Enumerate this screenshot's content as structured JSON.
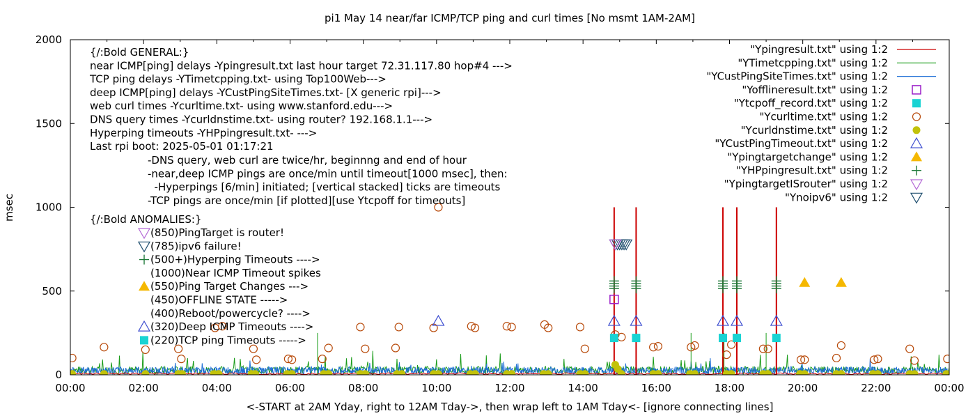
{
  "chart_data": {
    "type": "scatter",
    "title": "pi1 May 14  near/far ICMP/TCP ping and curl times [No msmt 1AM-2AM]",
    "xlabel": "<-START at 2AM Yday, right to 12AM Tday->, then wrap left to 1AM Tday<- [ignore connecting lines]",
    "ylabel": "msec",
    "xlim": [
      0,
      24
    ],
    "ylim": [
      0,
      2000
    ],
    "x_ticks": [
      "00:00",
      "02:00",
      "04:00",
      "06:00",
      "08:00",
      "10:00",
      "12:00",
      "14:00",
      "16:00",
      "18:00",
      "20:00",
      "22:00",
      "00:00"
    ],
    "y_ticks": [
      "0",
      "500",
      "1000",
      "1500",
      "2000"
    ],
    "legend_position": "top-right",
    "legend": [
      {
        "label": "\"Ypingresult.txt\" using 1:2",
        "color": "#cc0000",
        "marker": "line"
      },
      {
        "label": "\"YTimetcpping.txt\" using 1:2",
        "color": "#1a9c1a",
        "marker": "line"
      },
      {
        "label": "\"YCustPingSiteTimes.txt\" using 1:2",
        "color": "#1f6fd6",
        "marker": "line"
      },
      {
        "label": "\"Yofflineresult.txt\" using 1:2",
        "color": "#9b1fc9",
        "marker": "open-square"
      },
      {
        "label": "\"Ytcpoff_record.txt\" using 1:2",
        "color": "#19d3d3",
        "marker": "filled-square"
      },
      {
        "label": "\"Ycurltime.txt\" using 1:2",
        "color": "#b84a0a",
        "marker": "open-circle"
      },
      {
        "label": "\"Ycurldnstime.txt\" using 1:2",
        "color": "#c2c20a",
        "marker": "filled-circle"
      },
      {
        "label": "\"YCustPingTimeout.txt\" using 1:2",
        "color": "#3f4fd0",
        "marker": "open-triangle"
      },
      {
        "label": "\"Ypingtargetchange\" using 1:2",
        "color": "#f5b800",
        "marker": "filled-triangle"
      },
      {
        "label": "\"YHPpingresult.txt\" using 1:2",
        "color": "#1f7a3a",
        "marker": "plus"
      },
      {
        "label": "\"YpingtargetISrouter\" using 1:2",
        "color": "#b46ad6",
        "marker": "open-down-triangle"
      },
      {
        "label": "\"Ynoipv6\" using 1:2",
        "color": "#1f4f6f",
        "marker": "open-down-triangle"
      }
    ],
    "notes_general": [
      "{/:Bold GENERAL:}",
      "near ICMP[ping] delays -Ypingresult.txt last hour target 72.31.117.80 hop#4 --->",
      "TCP ping delays -YTimetcpping.txt- using Top100Web--->",
      "deep ICMP[ping] delays -YCustPingSiteTimes.txt- [X generic rpi]--->",
      "web curl times -Ycurltime.txt- using www.stanford.edu--->",
      "DNS query times -Ycurldnstime.txt- using router? 192.168.1.1--->",
      "Hyperping timeouts -YHPpingresult.txt- --->",
      "Last rpi boot: 2025-05-01 01:17:21"
    ],
    "notes_indented": [
      "-DNS query, web curl are twice/hr, beginnng and end of hour",
      "-near,deep ICMP pings are once/min until timeout[1000 msec], then:",
      "  -Hyperpings [6/min] initiated; [vertical stacked] ticks are timeouts",
      "-TCP pings are once/min [if plotted][use Ytcpoff for timeouts]"
    ],
    "anomalies_title": "{/:Bold ANOMALIES:}",
    "anomalies": [
      {
        "marker": "open-down-triangle",
        "color": "#b46ad6",
        "text": "(850)PingTarget is router!"
      },
      {
        "marker": "open-down-triangle",
        "color": "#1f4f6f",
        "text": "(785)ipv6 failure!"
      },
      {
        "marker": "plus",
        "color": "#1f7a3a",
        "text": "(500+)Hyperping Timeouts ---->"
      },
      {
        "marker": "none",
        "color": "#000000",
        "text": "(1000)Near ICMP Timeout spikes"
      },
      {
        "marker": "filled-triangle",
        "color": "#f5b800",
        "text": "(550)Ping Target Changes --->"
      },
      {
        "marker": "none",
        "color": "#000000",
        "text": "(450)OFFLINE STATE ----->"
      },
      {
        "marker": "none",
        "color": "#000000",
        "text": "(400)Reboot/powercycle? ---->"
      },
      {
        "marker": "open-triangle",
        "color": "#3f4fd0",
        "text": "(320)Deep ICMP Timeouts ---->"
      },
      {
        "marker": "filled-square",
        "color": "#19d3d3",
        "text": "(220)TCP ping Timeouts ----->"
      }
    ],
    "series": {
      "icmp_timeout_spikes_x": [
        14.85,
        15.45,
        17.82,
        18.2,
        19.28
      ],
      "icmp_timeout_spike_value": 1000,
      "hyperping_timeouts_x": [
        14.85,
        15.45,
        17.82,
        18.2,
        19.28
      ],
      "hyperping_timeout_values": [
        515,
        530,
        545,
        560
      ],
      "deep_icmp_timeouts": [
        [
          10.05,
          320
        ],
        [
          14.85,
          320
        ],
        [
          15.45,
          320
        ],
        [
          17.82,
          320
        ],
        [
          18.2,
          320
        ],
        [
          19.28,
          320
        ]
      ],
      "tcp_ping_timeouts": [
        [
          14.85,
          220
        ],
        [
          15.45,
          220
        ],
        [
          17.82,
          220
        ],
        [
          18.2,
          220
        ],
        [
          19.28,
          220
        ]
      ],
      "offline_state": [
        [
          14.85,
          450
        ]
      ],
      "ipv6_failures": [
        [
          14.88,
          780
        ],
        [
          14.94,
          780
        ],
        [
          15.0,
          780
        ],
        [
          15.06,
          780
        ],
        [
          15.12,
          780
        ],
        [
          15.18,
          780
        ]
      ],
      "ping_target_changes": [
        [
          20.05,
          550
        ],
        [
          21.05,
          550
        ]
      ],
      "curl_times": [
        [
          0.05,
          100
        ],
        [
          0.92,
          165
        ],
        [
          2.05,
          150
        ],
        [
          2.95,
          155
        ],
        [
          3.03,
          95
        ],
        [
          3.95,
          280
        ],
        [
          4.15,
          290
        ],
        [
          5.0,
          155
        ],
        [
          5.08,
          90
        ],
        [
          5.95,
          95
        ],
        [
          6.05,
          90
        ],
        [
          6.88,
          95
        ],
        [
          7.05,
          160
        ],
        [
          7.92,
          285
        ],
        [
          8.05,
          155
        ],
        [
          8.88,
          160
        ],
        [
          8.97,
          285
        ],
        [
          9.92,
          280
        ],
        [
          10.05,
          1000
        ],
        [
          10.95,
          290
        ],
        [
          11.05,
          280
        ],
        [
          11.92,
          290
        ],
        [
          12.05,
          285
        ],
        [
          12.95,
          300
        ],
        [
          13.05,
          280
        ],
        [
          13.92,
          285
        ],
        [
          14.05,
          155
        ],
        [
          14.88,
          240
        ],
        [
          15.05,
          225
        ],
        [
          15.92,
          165
        ],
        [
          16.05,
          170
        ],
        [
          16.95,
          165
        ],
        [
          17.05,
          175
        ],
        [
          17.92,
          120
        ],
        [
          18.05,
          180
        ],
        [
          18.92,
          155
        ],
        [
          19.05,
          155
        ],
        [
          19.95,
          90
        ],
        [
          20.05,
          90
        ],
        [
          20.92,
          100
        ],
        [
          21.05,
          175
        ],
        [
          21.95,
          90
        ],
        [
          22.05,
          95
        ],
        [
          22.92,
          155
        ],
        [
          23.05,
          85
        ],
        [
          23.95,
          95
        ]
      ],
      "dns_times": [
        [
          0.05,
          5
        ],
        [
          0.92,
          5
        ],
        [
          2.05,
          5
        ],
        [
          2.95,
          5
        ],
        [
          3.05,
          5
        ],
        [
          3.92,
          5
        ],
        [
          4.05,
          5
        ],
        [
          4.95,
          5
        ],
        [
          5.05,
          5
        ],
        [
          5.92,
          5
        ],
        [
          6.05,
          5
        ],
        [
          6.92,
          5
        ],
        [
          7.05,
          5
        ],
        [
          7.92,
          5
        ],
        [
          8.05,
          5
        ],
        [
          8.92,
          5
        ],
        [
          9.05,
          5
        ],
        [
          9.92,
          5
        ],
        [
          10.05,
          5
        ],
        [
          10.92,
          5
        ],
        [
          11.05,
          5
        ],
        [
          11.92,
          5
        ],
        [
          12.05,
          5
        ],
        [
          12.92,
          5
        ],
        [
          13.05,
          5
        ],
        [
          13.92,
          5
        ],
        [
          14.05,
          5
        ],
        [
          14.88,
          60
        ],
        [
          14.95,
          35
        ],
        [
          15.05,
          5
        ],
        [
          15.92,
          5
        ],
        [
          16.05,
          5
        ],
        [
          16.92,
          5
        ],
        [
          17.05,
          5
        ],
        [
          17.92,
          5
        ],
        [
          18.05,
          5
        ],
        [
          18.92,
          5
        ],
        [
          19.05,
          5
        ],
        [
          19.92,
          5
        ],
        [
          20.05,
          5
        ],
        [
          20.92,
          5
        ],
        [
          21.05,
          5
        ],
        [
          21.92,
          5
        ],
        [
          22.05,
          5
        ],
        [
          22.92,
          5
        ],
        [
          23.05,
          5
        ],
        [
          23.92,
          5
        ]
      ],
      "tcp_ping_line_approx_ms": 30,
      "near_icmp_line_approx_ms": 10,
      "deep_icmp_line_approx_ms": 20
    }
  }
}
